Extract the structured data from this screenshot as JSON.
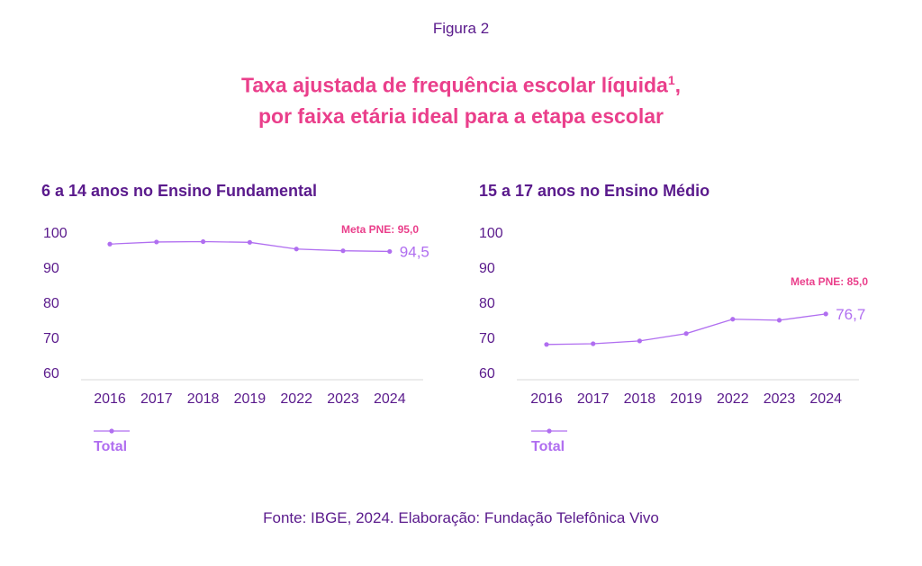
{
  "figure_label": "Figura 2",
  "title_line1": "Taxa ajustada de frequência escolar líquida",
  "title_sup": "1",
  "title_comma": ",",
  "title_line2": "por faixa etária ideal para a etapa escolar",
  "source": "Fonte: IBGE, 2024. Elaboração: Fundação Telefônica Vivo",
  "colors": {
    "title": "#ea3f8b",
    "text": "#5a1a8c",
    "series": "#b06ef0",
    "meta": "#ea3f8b",
    "axis": "#d9d9d9"
  },
  "chart_data": [
    {
      "type": "line",
      "title": "6 a 14 anos no Ensino Fundamental",
      "categories": [
        "2016",
        "2017",
        "2018",
        "2019",
        "2022",
        "2023",
        "2024"
      ],
      "series": [
        {
          "name": "Total",
          "values": [
            96.6,
            97.2,
            97.3,
            97.1,
            95.2,
            94.7,
            94.5
          ]
        }
      ],
      "ylim": [
        60,
        100
      ],
      "yticks": [
        60,
        70,
        80,
        90,
        100
      ],
      "last_label": "94,5",
      "meta_label": "Meta PNE: 95,0",
      "grid": false,
      "legend": "bottom-left"
    },
    {
      "type": "line",
      "title": "15 a 17 anos no Ensino Médio",
      "categories": [
        "2016",
        "2017",
        "2018",
        "2019",
        "2022",
        "2023",
        "2024"
      ],
      "series": [
        {
          "name": "Total",
          "values": [
            68.0,
            68.2,
            69.0,
            71.1,
            75.2,
            74.9,
            76.7
          ]
        }
      ],
      "ylim": [
        60,
        100
      ],
      "yticks": [
        60,
        70,
        80,
        90,
        100
      ],
      "last_label": "76,7",
      "meta_label": "Meta PNE: 85,0",
      "grid": false,
      "legend": "bottom-left"
    }
  ]
}
